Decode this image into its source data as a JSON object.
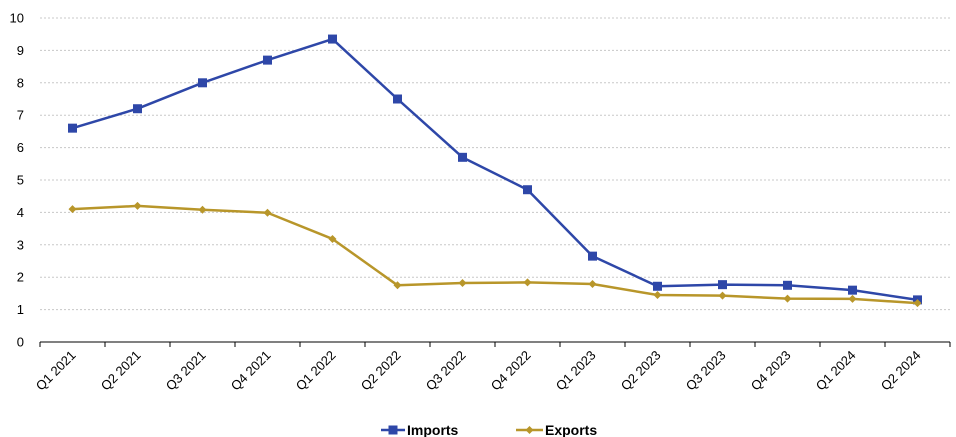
{
  "chart_data": {
    "type": "line",
    "title": "",
    "xlabel": "",
    "ylabel": "",
    "categories": [
      "Q1 2021",
      "Q2 2021",
      "Q3 2021",
      "Q4 2021",
      "Q1 2022",
      "Q2 2022",
      "Q3 2022",
      "Q4 2022",
      "Q1 2023",
      "Q2 2023",
      "Q3 2023",
      "Q4 2023",
      "Q1 2024",
      "Q2 2024"
    ],
    "ylim": [
      0,
      10
    ],
    "yticks": [
      "0",
      "1",
      "2",
      "3",
      "4",
      "5",
      "6",
      "7",
      "8",
      "9",
      "10"
    ],
    "grid": true,
    "legend_position": "bottom",
    "series": [
      {
        "name": "Imports",
        "color": "#2E47A8",
        "marker": "square",
        "values": [
          6.6,
          7.2,
          8.0,
          8.7,
          9.35,
          7.5,
          5.7,
          4.7,
          2.65,
          1.72,
          1.77,
          1.75,
          1.6,
          1.3
        ]
      },
      {
        "name": "Exports",
        "color": "#B8962A",
        "marker": "diamond",
        "values": [
          4.1,
          4.2,
          4.08,
          3.99,
          3.18,
          1.75,
          1.82,
          1.84,
          1.79,
          1.45,
          1.43,
          1.34,
          1.33,
          1.2
        ]
      }
    ]
  }
}
